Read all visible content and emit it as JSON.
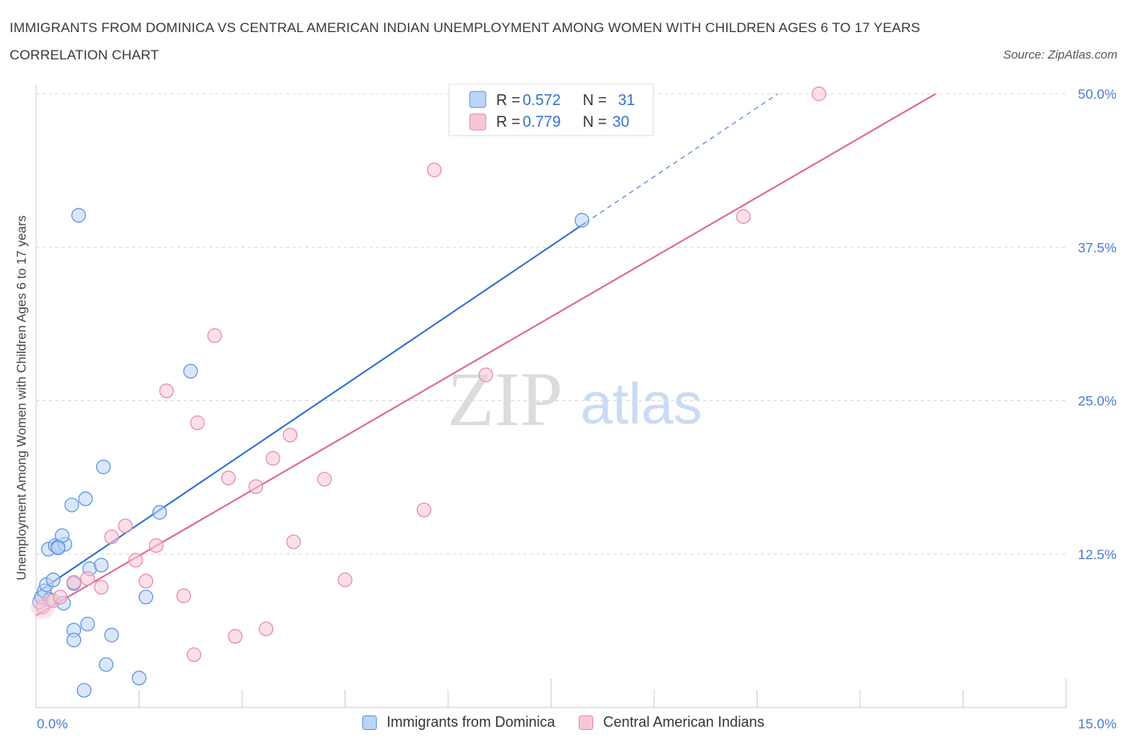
{
  "title": "IMMIGRANTS FROM DOMINICA VS CENTRAL AMERICAN INDIAN UNEMPLOYMENT AMONG WOMEN WITH CHILDREN AGES 6 TO 17 YEARS CORRELATION CHART",
  "source": "Source: ZipAtlas.com",
  "watermark": {
    "zip": "ZIP",
    "atlas": "atlas"
  },
  "colors": {
    "blue": "#5b93e0",
    "blue_fill": "#bcd4f5",
    "blue_line": "#2f72cf",
    "pink": "#e989a8",
    "pink_fill": "#f7c6d6",
    "pink_line": "#e0658f",
    "grid": "#d8d8d8",
    "tick_text": "#4a7bd0"
  },
  "legend": {
    "rows": [
      {
        "r_label": "R =",
        "r_value": "0.572",
        "n_label": "N =",
        "n_value": "31"
      },
      {
        "r_label": "R =",
        "r_value": "0.779",
        "n_label": "N =",
        "n_value": "30"
      }
    ]
  },
  "chart_data": {
    "type": "scatter",
    "title": "IMMIGRANTS FROM DOMINICA VS CENTRAL AMERICAN INDIAN UNEMPLOYMENT AMONG WOMEN WITH CHILDREN AGES 6 TO 17 YEARS CORRELATION CHART",
    "xlabel": "",
    "ylabel": "Unemployment Among Women with Children Ages 6 to 17 years",
    "xlim": [
      0,
      15
    ],
    "ylim": [
      0,
      50
    ],
    "x_tick_labels": [
      "0.0%",
      "15.0%"
    ],
    "y_ticks": [
      12.5,
      25.0,
      37.5,
      50.0
    ],
    "y_tick_labels": [
      "12.5%",
      "25.0%",
      "37.5%",
      "50.0%"
    ],
    "grid": true,
    "legend_placement": "bottom",
    "series": [
      {
        "name": "Immigrants from Dominica",
        "color": "#5b93e0",
        "R": 0.572,
        "N": 31,
        "trend": {
          "x0": 0.0,
          "y0": 9.3,
          "x1": 8.0,
          "y1": 39.5,
          "dash_x_end": 10.8,
          "dash_y_end": 50.0
        },
        "points": [
          [
            0.05,
            8.6
          ],
          [
            0.08,
            9.0
          ],
          [
            0.12,
            9.5
          ],
          [
            0.15,
            10.0
          ],
          [
            0.2,
            8.8
          ],
          [
            0.25,
            10.4
          ],
          [
            0.18,
            12.9
          ],
          [
            0.28,
            13.2
          ],
          [
            0.32,
            13.1
          ],
          [
            0.42,
            13.3
          ],
          [
            0.38,
            14.0
          ],
          [
            0.4,
            8.5
          ],
          [
            0.52,
            16.5
          ],
          [
            0.62,
            40.1
          ],
          [
            0.72,
            17.0
          ],
          [
            0.78,
            11.3
          ],
          [
            0.95,
            11.6
          ],
          [
            0.98,
            19.6
          ],
          [
            0.55,
            10.1
          ],
          [
            0.55,
            6.3
          ],
          [
            0.55,
            5.5
          ],
          [
            0.75,
            6.8
          ],
          [
            1.1,
            5.9
          ],
          [
            1.02,
            3.5
          ],
          [
            0.7,
            1.4
          ],
          [
            1.5,
            2.4
          ],
          [
            1.6,
            9.0
          ],
          [
            1.8,
            15.9
          ],
          [
            2.25,
            27.4
          ],
          [
            7.95,
            39.7
          ],
          [
            0.32,
            13.0
          ]
        ]
      },
      {
        "name": "Central American Indians",
        "color": "#e989a8",
        "R": 0.779,
        "N": 30,
        "trend": {
          "x0": 0.0,
          "y0": 7.5,
          "x1": 13.1,
          "y1": 50.0
        },
        "points": [
          [
            0.1,
            8.2
          ],
          [
            0.25,
            8.7
          ],
          [
            0.35,
            9.0
          ],
          [
            0.55,
            10.2
          ],
          [
            0.75,
            10.5
          ],
          [
            0.95,
            9.8
          ],
          [
            1.1,
            13.9
          ],
          [
            1.3,
            14.8
          ],
          [
            1.45,
            12.0
          ],
          [
            1.6,
            10.3
          ],
          [
            1.75,
            13.2
          ],
          [
            1.9,
            25.8
          ],
          [
            2.15,
            9.1
          ],
          [
            2.3,
            4.3
          ],
          [
            2.35,
            23.2
          ],
          [
            2.6,
            30.3
          ],
          [
            2.8,
            18.7
          ],
          [
            2.9,
            5.8
          ],
          [
            3.2,
            18.0
          ],
          [
            3.35,
            6.4
          ],
          [
            3.45,
            20.3
          ],
          [
            3.7,
            22.2
          ],
          [
            3.75,
            13.5
          ],
          [
            4.2,
            18.6
          ],
          [
            4.5,
            10.4
          ],
          [
            5.65,
            16.1
          ],
          [
            5.8,
            43.8
          ],
          [
            6.55,
            27.1
          ],
          [
            10.3,
            40.0
          ],
          [
            11.4,
            50.0
          ]
        ]
      }
    ]
  }
}
